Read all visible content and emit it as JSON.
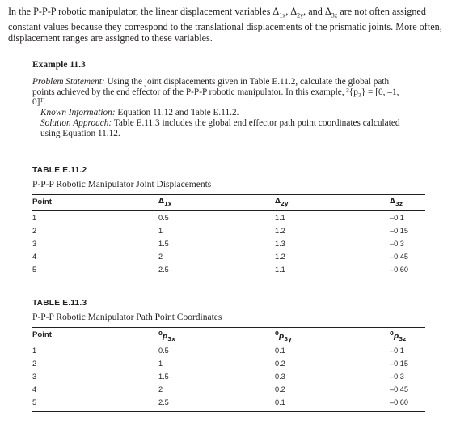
{
  "intro": {
    "text_a": "In the P-P-P robotic manipulator, the linear displacement variables Δ",
    "sub1": "1x",
    "sep1": ", Δ",
    "sub2": "2y",
    "sep2": ", and Δ",
    "sub3": "3z",
    "text_b": " are not often assigned constant values because they correspond to the translational displacements of the prismatic joints. More often, displacement ranges are assigned to these variables."
  },
  "example": {
    "title": "Example 11.3",
    "problem_label": "Problem Statement:",
    "problem_text": " Using the joint displacements given in Table E.11.2, calculate the global path points achieved by the end effector of the P-P-P robotic manipulator. In this example, ",
    "problem_math": "³{p₃} = [0, –1, 0]ᵀ",
    "problem_end": ".",
    "known_label": "Known Information:",
    "known_text": " Equation 11.12 and Table E.11.2.",
    "solution_label": "Solution Approach:",
    "solution_text": " Table E.11.3 includes the global end effector path point coordinates calculated using Equation 11.12."
  },
  "table1": {
    "label": "TABLE E.11.2",
    "caption": "P-P-P Robotic Manipulator Joint Displacements",
    "headers": [
      "Point",
      "Δ",
      "Δ",
      "Δ"
    ],
    "header_subs": [
      "",
      "1x",
      "2y",
      "3z"
    ],
    "rows": [
      [
        "1",
        "0.5",
        "1.1",
        "–0.1"
      ],
      [
        "2",
        "1",
        "1.2",
        "–0.15"
      ],
      [
        "3",
        "1.5",
        "1.3",
        "–0.3"
      ],
      [
        "4",
        "2",
        "1.2",
        "–0.45"
      ],
      [
        "5",
        "2.5",
        "1.1",
        "–0.60"
      ]
    ]
  },
  "table2": {
    "label": "TABLE E.11.3",
    "caption": "P-P-P Robotic Manipulator Path Point Coordinates",
    "headers": [
      "Point",
      "p",
      "p",
      "p"
    ],
    "header_sups": [
      "",
      "0",
      "0",
      "0"
    ],
    "header_subs": [
      "",
      "3x",
      "3y",
      "3z"
    ],
    "rows": [
      [
        "1",
        "0.5",
        "0.1",
        "–0.1"
      ],
      [
        "2",
        "1",
        "0.2",
        "–0.15"
      ],
      [
        "3",
        "1.5",
        "0.3",
        "–0.3"
      ],
      [
        "4",
        "2",
        "0.2",
        "–0.45"
      ],
      [
        "5",
        "2.5",
        "0.1",
        "–0.60"
      ]
    ]
  }
}
